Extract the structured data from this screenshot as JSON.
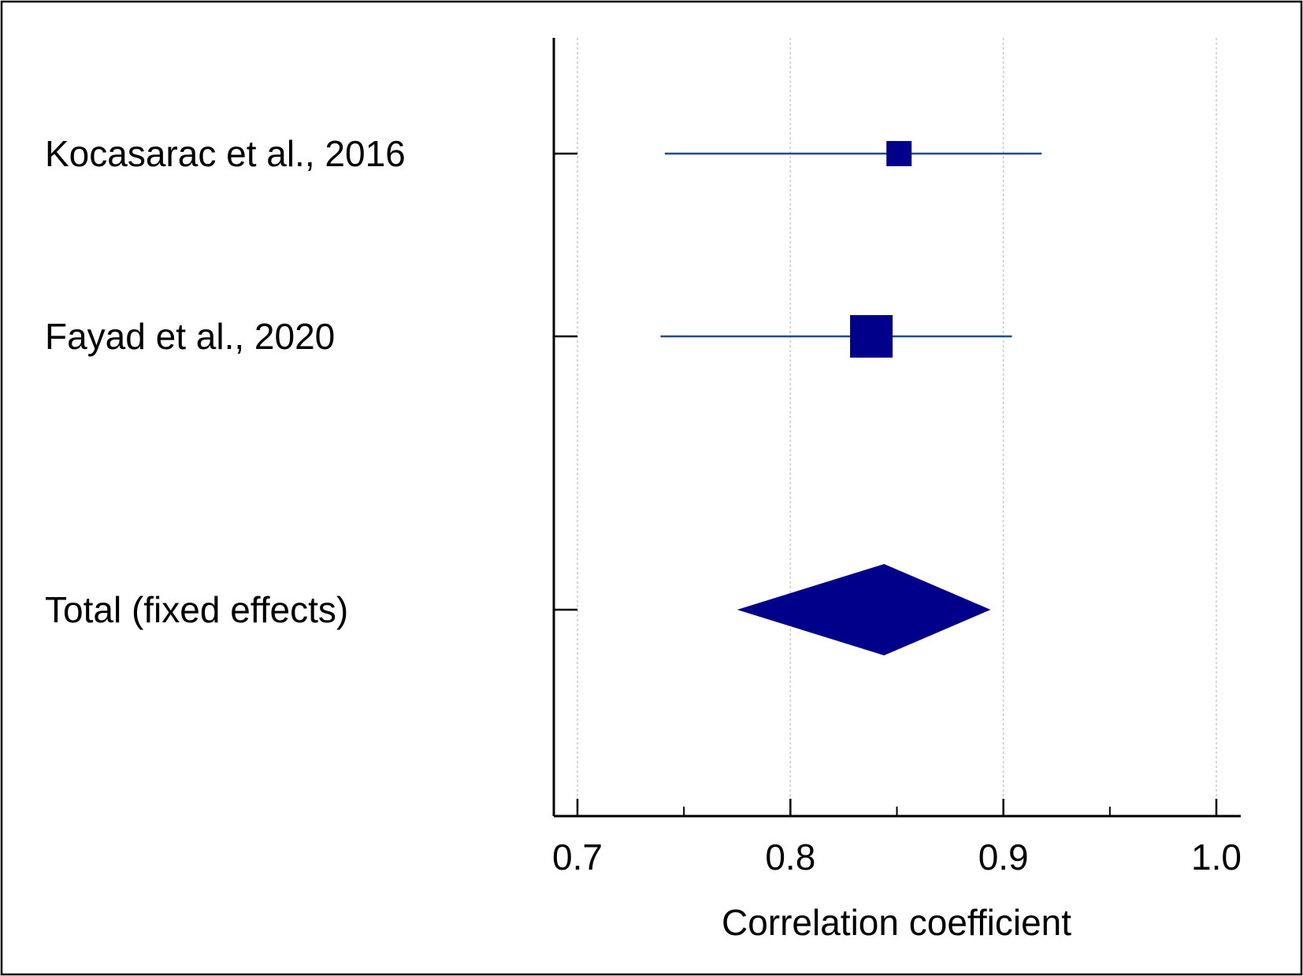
{
  "chart_data": {
    "type": "forest",
    "title": "",
    "xlabel": "Correlation coefficient",
    "ylabel": "",
    "xlim": [
      0.69,
      1.01
    ],
    "x_ticks": [
      "0.7",
      "0.8",
      "0.9",
      "1.0"
    ],
    "x_tick_values": [
      0.7,
      0.8,
      0.9,
      1.0
    ],
    "x_minor_tick_values": [
      0.75,
      0.85,
      0.95
    ],
    "grid": "vertical dotted at major ticks",
    "studies": [
      {
        "label": "Kocasarac et al., 2016",
        "estimate": 0.851,
        "ci_lower": 0.741,
        "ci_upper": 0.918,
        "weight": 0.15
      },
      {
        "label": "Fayad et al., 2020",
        "estimate": 0.838,
        "ci_lower": 0.739,
        "ci_upper": 0.904,
        "weight": 0.85
      }
    ],
    "pooled": {
      "label": "Total (fixed effects)",
      "estimate": 0.844,
      "ci_lower": 0.775,
      "ci_upper": 0.894
    },
    "colors": {
      "marker": "#00008b",
      "ci_line": "#1f4e8c",
      "axis": "#000000",
      "grid": "#c8c8c8",
      "frame": "#000000"
    }
  }
}
